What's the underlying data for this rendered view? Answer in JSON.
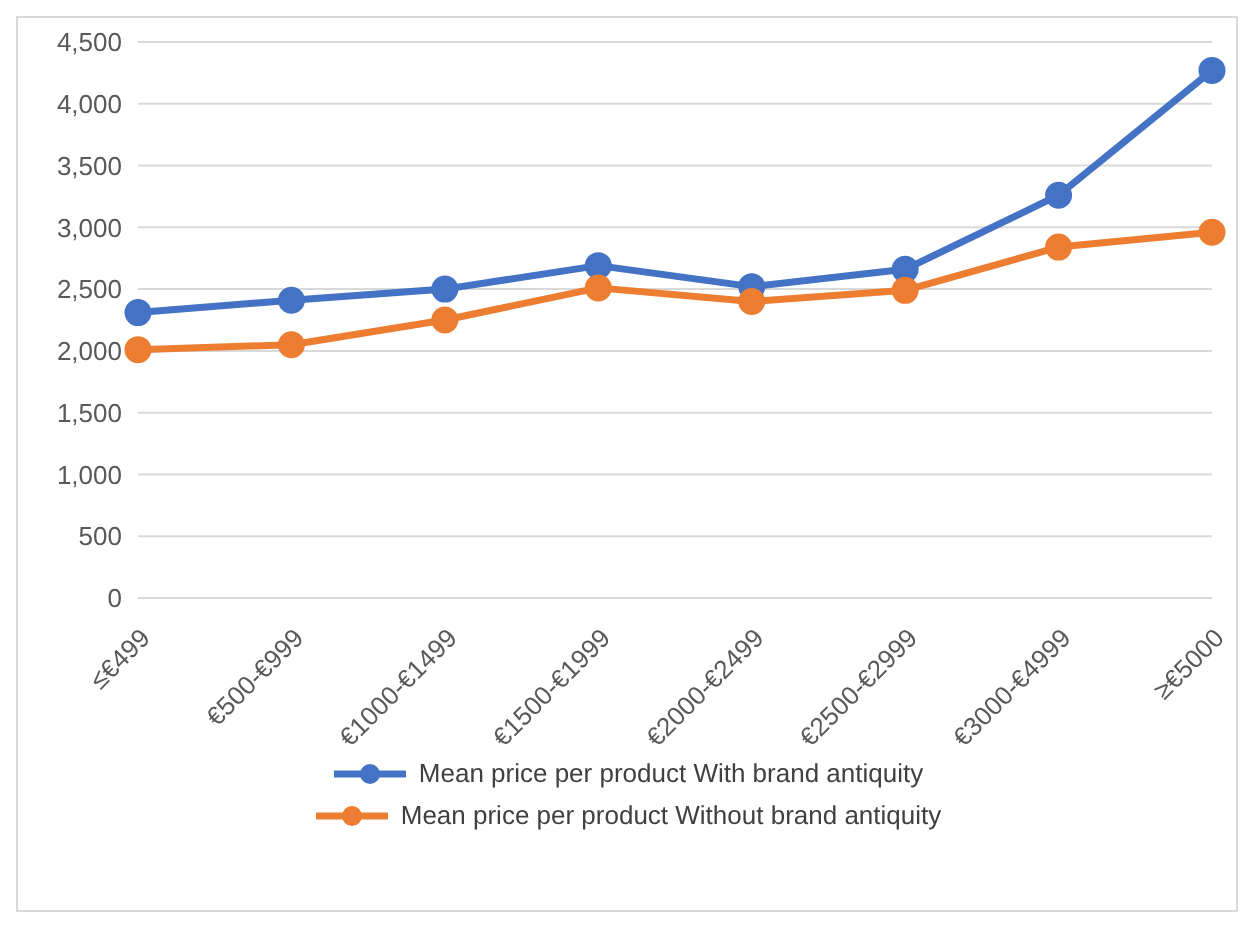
{
  "chart_data": {
    "type": "line",
    "categories": [
      "≤€499",
      "€500-€999",
      "€1000-€1499",
      "€1500-€1999",
      "€2000-€2499",
      "€2500-€2999",
      "€3000-€4999",
      "≥€5000"
    ],
    "series": [
      {
        "name": "Mean price per product With brand antiquity",
        "color": "#4472c4",
        "values": [
          2310,
          2410,
          2500,
          2690,
          2520,
          2660,
          3260,
          4270
        ]
      },
      {
        "name": "Mean price per product Without brand antiquity",
        "color": "#ed7d31",
        "values": [
          2010,
          2050,
          2250,
          2510,
          2400,
          2490,
          2840,
          2960
        ]
      }
    ],
    "ylim": [
      0,
      4500
    ],
    "yticks": [
      0,
      500,
      {
        "value": 1000,
        "label": "1,000"
      },
      {
        "value": 1500,
        "label": "1,500"
      },
      {
        "value": 2000,
        "label": "2,000"
      },
      {
        "value": 2500,
        "label": "2,500"
      },
      {
        "value": 3000,
        "label": "3,000"
      },
      {
        "value": 3500,
        "label": "3,500"
      },
      {
        "value": 4000,
        "label": "4,000"
      },
      {
        "value": 4500,
        "label": "4,500"
      }
    ],
    "grid": "y",
    "legend": "bottom",
    "marker": "circle",
    "line_style": "solid"
  }
}
